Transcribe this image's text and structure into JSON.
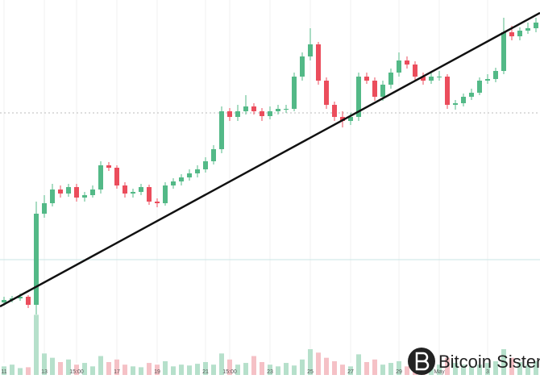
{
  "chart_data": {
    "type": "candlestick",
    "open": [
      25,
      28,
      30,
      32,
      22,
      135,
      148,
      165,
      160,
      168,
      155,
      158,
      165,
      195,
      192,
      170,
      160,
      162,
      168,
      150,
      148,
      170,
      175,
      180,
      185,
      190,
      200,
      215,
      262,
      255,
      262,
      268,
      262,
      256,
      262,
      265,
      265,
      305,
      330,
      345,
      300,
      270,
      255,
      250,
      255,
      305,
      300,
      280,
      295,
      310,
      325,
      320,
      305,
      300,
      305,
      305,
      270,
      272,
      280,
      285,
      300,
      302,
      312,
      360,
      355,
      362,
      365
    ],
    "high": [
      32,
      33,
      36,
      34,
      150,
      158,
      172,
      170,
      172,
      172,
      162,
      170,
      200,
      199,
      195,
      174,
      166,
      172,
      171,
      154,
      174,
      179,
      184,
      190,
      195,
      205,
      220,
      268,
      266,
      270,
      282,
      272,
      266,
      268,
      270,
      270,
      310,
      335,
      365,
      348,
      304,
      274,
      262,
      260,
      310,
      310,
      304,
      300,
      315,
      335,
      330,
      324,
      310,
      310,
      312,
      308,
      276,
      284,
      290,
      304,
      308,
      316,
      378,
      368,
      366,
      372,
      378
    ],
    "low": [
      21,
      25,
      27,
      18,
      10,
      130,
      144,
      155,
      156,
      150,
      150,
      155,
      160,
      188,
      166,
      155,
      155,
      158,
      146,
      143,
      145,
      166,
      170,
      176,
      180,
      186,
      196,
      210,
      250,
      250,
      258,
      258,
      250,
      252,
      258,
      260,
      262,
      300,
      325,
      295,
      265,
      250,
      242,
      245,
      250,
      296,
      275,
      275,
      290,
      305,
      315,
      300,
      295,
      296,
      300,
      265,
      264,
      268,
      276,
      282,
      296,
      298,
      308,
      350,
      350,
      358,
      360
    ],
    "close": [
      28,
      30,
      32,
      22,
      135,
      148,
      165,
      160,
      168,
      155,
      158,
      165,
      195,
      192,
      170,
      160,
      162,
      168,
      150,
      148,
      170,
      175,
      180,
      185,
      190,
      200,
      215,
      262,
      255,
      262,
      268,
      262,
      256,
      262,
      265,
      265,
      305,
      330,
      345,
      300,
      270,
      255,
      250,
      255,
      305,
      300,
      280,
      295,
      310,
      325,
      320,
      305,
      300,
      305,
      305,
      270,
      272,
      280,
      285,
      300,
      302,
      312,
      360,
      355,
      362,
      365,
      372
    ],
    "volume": [
      10,
      12,
      8,
      9,
      70,
      25,
      20,
      15,
      18,
      12,
      14,
      10,
      22,
      15,
      18,
      12,
      10,
      9,
      14,
      12,
      16,
      10,
      12,
      11,
      13,
      15,
      12,
      25,
      18,
      12,
      14,
      22,
      15,
      12,
      10,
      14,
      11,
      18,
      30,
      26,
      20,
      16,
      12,
      10,
      24,
      15,
      18,
      12,
      14,
      16,
      10,
      12,
      22,
      10,
      12,
      20,
      14,
      12,
      10,
      12,
      14,
      16,
      30,
      20,
      15,
      12,
      16
    ],
    "ylim": [
      0,
      400
    ],
    "volume_lim": [
      0,
      75
    ],
    "up_color": "#53b987",
    "down_color": "#eb4d5c",
    "volume_up_color": "#b6e0cb",
    "volume_down_color": "#f5c1c6",
    "xticks": [
      {
        "value": 0,
        "label": "11"
      },
      {
        "value": 5,
        "label": "13"
      },
      {
        "value": 9,
        "label": "15:00"
      },
      {
        "value": 14,
        "label": "17"
      },
      {
        "value": 19,
        "label": "19"
      },
      {
        "value": 25,
        "label": "21"
      },
      {
        "value": 28,
        "label": "15:00"
      },
      {
        "value": 33,
        "label": "23"
      },
      {
        "value": 38,
        "label": "25"
      },
      {
        "value": 43,
        "label": "27"
      },
      {
        "value": 49,
        "label": "29"
      },
      {
        "value": 54,
        "label": "May"
      },
      {
        "value": 60,
        "label": "3"
      }
    ],
    "watermark": "Bitcoin Sistemi"
  }
}
